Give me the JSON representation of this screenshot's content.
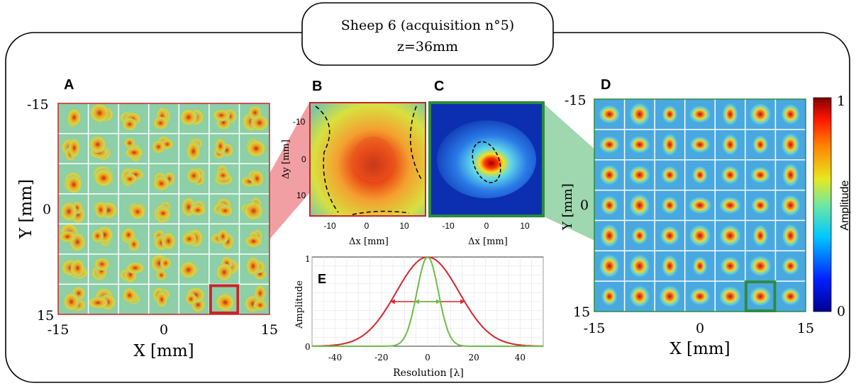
{
  "header": {
    "line1": "Sheep 6 (acquisition n°5)",
    "line2": "z=36mm"
  },
  "panels": {
    "A": {
      "letter": "A",
      "xlabel": "X [mm]",
      "ylabel": "Y [mm]",
      "xticks": [
        "-15",
        "0",
        "15"
      ],
      "yticks": [
        "-15",
        "0",
        "15"
      ]
    },
    "B": {
      "letter": "B",
      "xlabel": "Δx [mm]",
      "ylabel": "Δy [mm]",
      "xticks": [
        "-10",
        "0",
        "10"
      ],
      "yticks": [
        "-10",
        "0",
        "10"
      ]
    },
    "C": {
      "letter": "C",
      "xlabel": "Δx [mm]",
      "xticks": [
        "-10",
        "0",
        "10"
      ]
    },
    "D": {
      "letter": "D",
      "xlabel": "X [mm]",
      "ylabel": "Y [mm]",
      "xticks": [
        "-15",
        "0",
        "15"
      ],
      "yticks": [
        "-15",
        "0",
        "15"
      ]
    },
    "colorbar": {
      "label": "Amplitude",
      "max": "1",
      "min": "0"
    }
  },
  "chart_data": [
    {
      "type": "heatmap",
      "panel": "A",
      "grid": [
        7,
        7
      ],
      "xlim": [
        -15,
        15
      ],
      "ylim": [
        -15,
        15
      ],
      "highlighted_cell": {
        "row": 7,
        "col": 6
      },
      "highlight_color": "#cc2229"
    },
    {
      "type": "heatmap",
      "panel": "B",
      "xlim": [
        -15,
        15
      ],
      "ylim": [
        -15,
        15
      ],
      "contour": "dashed",
      "border_color": "#cc2229"
    },
    {
      "type": "heatmap",
      "panel": "C",
      "xlim": [
        -15,
        15
      ],
      "ylim": [
        -15,
        15
      ],
      "contour": "dashed",
      "border_color": "#2e8b3d"
    },
    {
      "type": "heatmap",
      "panel": "D",
      "grid": [
        7,
        7
      ],
      "xlim": [
        -15,
        15
      ],
      "ylim": [
        -15,
        15
      ],
      "highlighted_cell": {
        "row": 7,
        "col": 6
      },
      "highlight_color": "#2e8b3d",
      "colorscale": "jet",
      "crange": [
        0,
        1
      ]
    },
    {
      "type": "line",
      "panel": "E",
      "letter": "E",
      "xlabel": "Resolution [λ]",
      "ylabel": "Amplitude",
      "xlim": [
        -50,
        50
      ],
      "ylim": [
        0,
        1
      ],
      "xticks": [
        "-40",
        "-20",
        "0",
        "20",
        "40"
      ],
      "yticks": [
        "0",
        "1"
      ],
      "x": [
        -50,
        -40,
        -30,
        -20,
        -15,
        -10,
        -5,
        0,
        5,
        10,
        15,
        20,
        30,
        40,
        50
      ],
      "series": [
        {
          "color": "#d4252b",
          "fwhm": 32,
          "values": [
            0.0,
            0.01,
            0.12,
            0.4,
            0.58,
            0.78,
            0.94,
            1.0,
            0.94,
            0.78,
            0.58,
            0.4,
            0.12,
            0.01,
            0.0
          ]
        },
        {
          "color": "#6cbd45",
          "fwhm": 11,
          "values": [
            0.0,
            0.0,
            0.0,
            0.0,
            0.01,
            0.07,
            0.55,
            1.0,
            0.55,
            0.07,
            0.01,
            0.0,
            0.0,
            0.0,
            0.0
          ]
        }
      ]
    }
  ]
}
